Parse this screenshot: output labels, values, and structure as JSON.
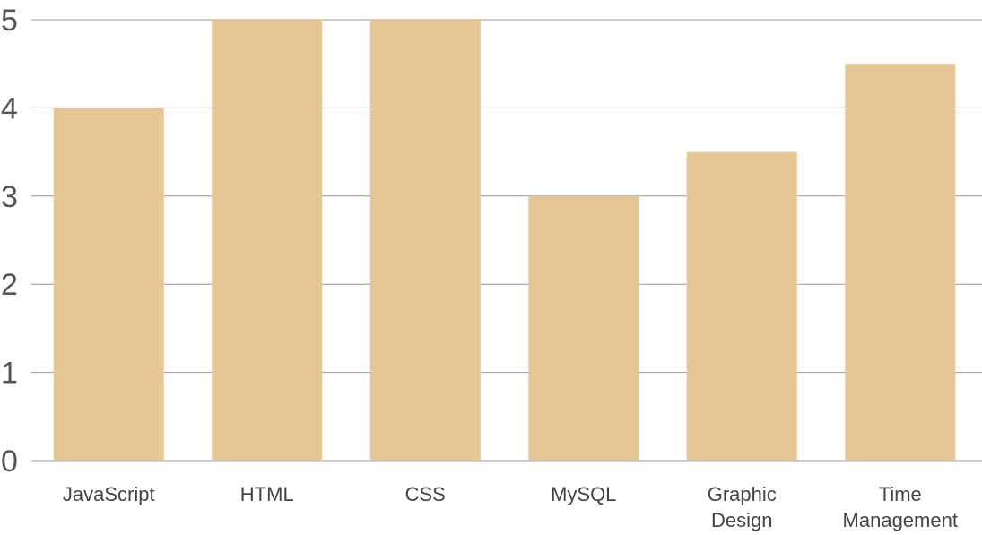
{
  "chart_data": {
    "type": "bar",
    "title": "",
    "xlabel": "",
    "ylabel": "",
    "categories": [
      [
        "JavaScript"
      ],
      [
        "HTML"
      ],
      [
        "CSS"
      ],
      [
        "MySQL"
      ],
      [
        "Graphic",
        "Design"
      ],
      [
        "Time",
        "Management"
      ]
    ],
    "values": [
      4,
      5,
      5,
      3,
      3.5,
      4.5
    ],
    "ylim": [
      0,
      5
    ],
    "yticks": [
      "0",
      "1",
      "2",
      "3",
      "4",
      "5"
    ],
    "grid": true,
    "legend": "none",
    "colors": {
      "bar": "#e6c597",
      "grid": "#9a9a9a",
      "tick_text": "#555555",
      "label_text": "#444444"
    }
  }
}
